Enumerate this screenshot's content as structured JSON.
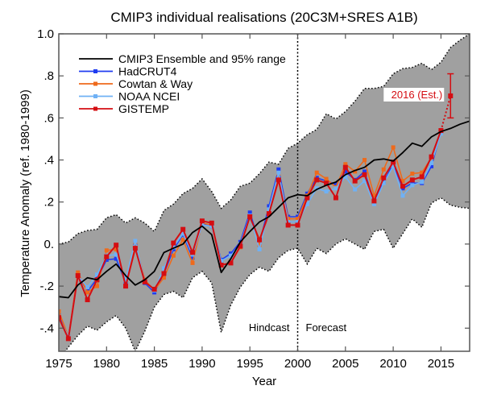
{
  "chart_data": {
    "type": "line",
    "title": "CMIP3 individual realisations (20C3M+SRES A1B)",
    "xlabel": "Year",
    "ylabel": "Temperature Anomaly (ref. 1980-1999)",
    "xlim": [
      1975,
      2018
    ],
    "ylim": [
      -0.51,
      1.0
    ],
    "x_ticks": [
      1975,
      1980,
      1985,
      1990,
      1995,
      2000,
      2005,
      2010,
      2015
    ],
    "x_tick_labels": [
      "1975",
      "1980",
      "1985",
      "1990",
      "1995",
      "2000",
      "2005",
      "2010",
      "2015"
    ],
    "y_ticks": [
      -0.4,
      -0.2,
      0.0,
      0.2,
      0.4,
      0.6,
      0.8,
      1.0
    ],
    "y_tick_labels": [
      "-.4",
      "-.2",
      "0.",
      ".2",
      ".4",
      ".6",
      ".8",
      "1.0"
    ],
    "grid": false,
    "legend_position": "top-left",
    "divider": {
      "year": 2000,
      "left_label": "Hindcast",
      "right_label": "Forecast"
    },
    "band": {
      "name": "CMIP3 95% range",
      "color": "#a0a0a0",
      "x": [
        1975,
        1976,
        1977,
        1978,
        1979,
        1980,
        1981,
        1982,
        1983,
        1984,
        1985,
        1986,
        1987,
        1988,
        1989,
        1990,
        1991,
        1992,
        1993,
        1994,
        1995,
        1996,
        1997,
        1998,
        1999,
        2000,
        2001,
        2002,
        2003,
        2004,
        2005,
        2006,
        2007,
        2008,
        2009,
        2010,
        2011,
        2012,
        2013,
        2014,
        2015,
        2016,
        2017,
        2018
      ],
      "upper": [
        0.0,
        0.01,
        0.05,
        0.065,
        0.07,
        0.125,
        0.14,
        0.1,
        0.125,
        0.1,
        0.06,
        0.16,
        0.19,
        0.24,
        0.265,
        0.31,
        0.25,
        0.17,
        0.21,
        0.275,
        0.29,
        0.335,
        0.39,
        0.38,
        0.455,
        0.48,
        0.52,
        0.545,
        0.62,
        0.595,
        0.63,
        0.68,
        0.74,
        0.74,
        0.75,
        0.81,
        0.835,
        0.84,
        0.86,
        0.83,
        0.865,
        0.935,
        0.97,
        1.0
      ],
      "lower": [
        -0.55,
        -0.49,
        -0.435,
        -0.39,
        -0.41,
        -0.37,
        -0.34,
        -0.4,
        -0.51,
        -0.415,
        -0.3,
        -0.24,
        -0.225,
        -0.255,
        -0.16,
        -0.13,
        -0.185,
        -0.42,
        -0.29,
        -0.205,
        -0.145,
        -0.11,
        -0.13,
        -0.065,
        -0.03,
        -0.02,
        -0.095,
        -0.02,
        -0.045,
        0.0,
        0.025,
        0.0,
        -0.025,
        0.06,
        0.07,
        -0.02,
        0.05,
        0.12,
        0.08,
        0.195,
        0.22,
        0.185,
        0.175,
        0.17
      ]
    },
    "series": [
      {
        "name": "CMIP3 Ensemble and 95% range",
        "color": "#000000",
        "markers": false,
        "x": [
          1975,
          1976,
          1977,
          1978,
          1979,
          1980,
          1981,
          1982,
          1983,
          1984,
          1985,
          1986,
          1987,
          1988,
          1989,
          1990,
          1991,
          1992,
          1993,
          1994,
          1995,
          1996,
          1997,
          1998,
          1999,
          2000,
          2001,
          2002,
          2003,
          2004,
          2005,
          2006,
          2007,
          2008,
          2009,
          2010,
          2011,
          2012,
          2013,
          2014,
          2015,
          2016,
          2017,
          2018
        ],
        "values": [
          -0.25,
          -0.255,
          -0.195,
          -0.16,
          -0.17,
          -0.13,
          -0.095,
          -0.15,
          -0.195,
          -0.17,
          -0.13,
          -0.04,
          -0.02,
          0.0,
          0.055,
          0.085,
          0.045,
          -0.135,
          -0.07,
          0.01,
          0.06,
          0.105,
          0.13,
          0.175,
          0.22,
          0.235,
          0.23,
          0.26,
          0.28,
          0.295,
          0.33,
          0.35,
          0.365,
          0.4,
          0.405,
          0.395,
          0.435,
          0.48,
          0.465,
          0.51,
          0.535,
          0.55,
          0.57,
          0.585
        ]
      },
      {
        "name": "HadCRUT4",
        "color": "#1f3cf0",
        "markers": true,
        "x": [
          1975,
          1976,
          1977,
          1978,
          1979,
          1980,
          1981,
          1982,
          1983,
          1984,
          1985,
          1986,
          1987,
          1988,
          1989,
          1990,
          1991,
          1992,
          1993,
          1994,
          1995,
          1996,
          1997,
          1998,
          1999,
          2000,
          2001,
          2002,
          2003,
          2004,
          2005,
          2006,
          2007,
          2008,
          2009,
          2010,
          2011,
          2012,
          2013,
          2014,
          2015
        ],
        "values": [
          -0.34,
          -0.44,
          -0.15,
          -0.225,
          -0.165,
          -0.075,
          -0.07,
          -0.185,
          0.005,
          -0.185,
          -0.23,
          -0.14,
          -0.025,
          0.045,
          -0.065,
          0.095,
          0.085,
          -0.075,
          -0.045,
          0.01,
          0.15,
          0.005,
          0.18,
          0.355,
          0.13,
          0.13,
          0.24,
          0.315,
          0.3,
          0.285,
          0.345,
          0.305,
          0.345,
          0.2,
          0.295,
          0.38,
          0.265,
          0.29,
          0.29,
          0.37,
          0.535
        ]
      },
      {
        "name": "Cowtan & Way",
        "color": "#ee6a1c",
        "markers": true,
        "x": [
          1975,
          1976,
          1977,
          1978,
          1979,
          1980,
          1981,
          1982,
          1983,
          1984,
          1985,
          1986,
          1987,
          1988,
          1989,
          1990,
          1991,
          1992,
          1993,
          1994,
          1995,
          1996,
          1997,
          1998,
          1999,
          2000,
          2001,
          2002,
          2003,
          2004,
          2005,
          2006,
          2007,
          2008,
          2009,
          2010,
          2011,
          2012,
          2013,
          2014,
          2015
        ],
        "values": [
          -0.32,
          -0.44,
          -0.135,
          -0.23,
          -0.2,
          -0.03,
          -0.025,
          -0.2,
          0.01,
          -0.17,
          -0.22,
          -0.16,
          -0.055,
          0.02,
          -0.09,
          0.1,
          0.09,
          -0.1,
          -0.09,
          -0.015,
          0.13,
          -0.005,
          0.15,
          0.335,
          0.12,
          0.12,
          0.23,
          0.34,
          0.31,
          0.27,
          0.38,
          0.345,
          0.4,
          0.23,
          0.355,
          0.46,
          0.3,
          0.335,
          0.34,
          0.41,
          0.54
        ]
      },
      {
        "name": "NOAA NCEI",
        "color": "#6fb1f5",
        "markers": true,
        "x": [
          1975,
          1976,
          1977,
          1978,
          1979,
          1980,
          1981,
          1982,
          1983,
          1984,
          1985,
          1986,
          1987,
          1988,
          1989,
          1990,
          1991,
          1992,
          1993,
          1994,
          1995,
          1996,
          1997,
          1998,
          1999,
          2000,
          2001,
          2002,
          2003,
          2004,
          2005,
          2006,
          2007,
          2008,
          2009,
          2010,
          2011,
          2012,
          2013,
          2014,
          2015
        ],
        "values": [
          -0.35,
          -0.44,
          -0.15,
          -0.205,
          -0.145,
          -0.055,
          -0.05,
          -0.17,
          0.015,
          -0.18,
          -0.22,
          -0.115,
          -0.015,
          0.05,
          -0.05,
          0.09,
          0.085,
          -0.08,
          -0.055,
          0.0,
          0.135,
          -0.025,
          0.165,
          0.34,
          0.105,
          0.105,
          0.19,
          0.265,
          0.25,
          0.265,
          0.32,
          0.26,
          0.3,
          0.19,
          0.29,
          0.37,
          0.23,
          0.28,
          0.295,
          0.385,
          0.525
        ]
      },
      {
        "name": "GISTEMP",
        "color": "#d40d12",
        "markers": true,
        "x": [
          1975,
          1976,
          1977,
          1978,
          1979,
          1980,
          1981,
          1982,
          1983,
          1984,
          1985,
          1986,
          1987,
          1988,
          1989,
          1990,
          1991,
          1992,
          1993,
          1994,
          1995,
          1996,
          1997,
          1998,
          1999,
          2000,
          2001,
          2002,
          2003,
          2004,
          2005,
          2006,
          2007,
          2008,
          2009,
          2010,
          2011,
          2012,
          2013,
          2014,
          2015
        ],
        "values": [
          -0.35,
          -0.45,
          -0.15,
          -0.265,
          -0.17,
          -0.06,
          -0.005,
          -0.2,
          -0.02,
          -0.18,
          -0.215,
          -0.14,
          0.005,
          0.07,
          -0.04,
          0.11,
          0.1,
          -0.1,
          -0.09,
          -0.01,
          0.13,
          0.02,
          0.145,
          0.305,
          0.09,
          0.09,
          0.22,
          0.305,
          0.29,
          0.22,
          0.365,
          0.3,
          0.33,
          0.205,
          0.315,
          0.39,
          0.275,
          0.305,
          0.32,
          0.415,
          0.54
        ]
      }
    ],
    "estimate": {
      "label": "2016 (Est.)",
      "color": "#d40d12",
      "year": 2016,
      "value": 0.705,
      "error_low": 0.6,
      "error_high": 0.81,
      "from_year": 2015,
      "from_value": 0.54
    }
  }
}
